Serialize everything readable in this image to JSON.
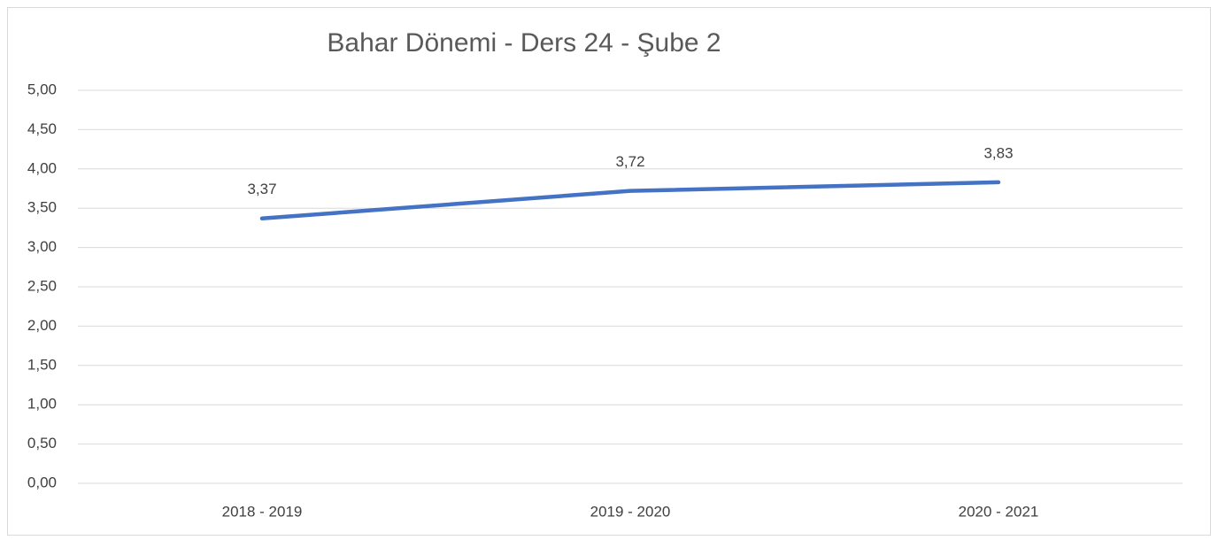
{
  "chart_data": {
    "type": "line",
    "title": "Bahar Dönemi - Ders 24 - Şube 2",
    "categories": [
      "2018 - 2019",
      "2019 - 2020",
      "2020 - 2021"
    ],
    "values": [
      3.37,
      3.72,
      3.83
    ],
    "value_labels": [
      "3,37",
      "3,72",
      "3,83"
    ],
    "color": "#4472c4",
    "ylim": [
      0,
      5
    ],
    "yticks": [
      {
        "value": 0,
        "label": "0,00"
      },
      {
        "value": 0.5,
        "label": "0,50"
      },
      {
        "value": 1,
        "label": "1,00"
      },
      {
        "value": 1.5,
        "label": "1,50"
      },
      {
        "value": 2,
        "label": "2,00"
      },
      {
        "value": 2.5,
        "label": "2,50"
      },
      {
        "value": 3,
        "label": "3,00"
      },
      {
        "value": 3.5,
        "label": "3,50"
      },
      {
        "value": 4,
        "label": "4,00"
      },
      {
        "value": 4.5,
        "label": "4,50"
      },
      {
        "value": 5,
        "label": "5,00"
      }
    ],
    "grid": true
  }
}
